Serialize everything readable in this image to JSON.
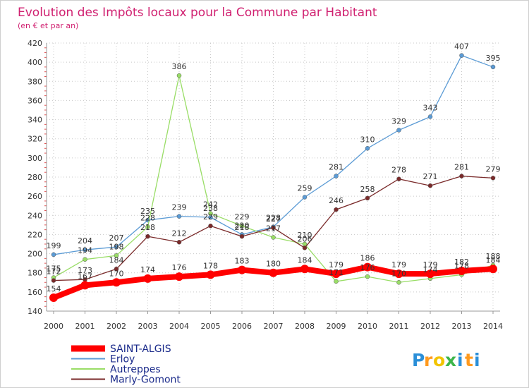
{
  "chart_data": {
    "type": "line",
    "title": "Evolution des Impôts locaux pour la Commune par Habitant",
    "subtitle": "(en € et par an)",
    "x": [
      "2000",
      "2001",
      "2002",
      "2003",
      "2004",
      "2005",
      "2006",
      "2007",
      "2008",
      "2009",
      "2010",
      "2011",
      "2012",
      "2013",
      "2014"
    ],
    "ylim": [
      140,
      420
    ],
    "yticks": [
      140,
      160,
      180,
      200,
      220,
      240,
      260,
      280,
      300,
      320,
      340,
      360,
      380,
      400,
      420
    ],
    "grid": "horizontal-dotted",
    "legend_position": "bottom-left",
    "series": [
      {
        "name": "SAINT-ALGIS",
        "color": "#ff0000",
        "values": [
          154,
          167,
          170,
          174,
          176,
          178,
          183,
          180,
          184,
          179,
          186,
          179,
          179,
          182,
          184
        ]
      },
      {
        "name": "Erloy",
        "color": "#5b9bd5",
        "values": [
          199,
          204,
          207,
          235,
          239,
          238,
          220,
          228,
          259,
          281,
          310,
          329,
          343,
          407,
          395
        ]
      },
      {
        "name": "Autreppes",
        "color": "#99dd66",
        "values": [
          175,
          194,
          198,
          228,
          386,
          242,
          229,
          217,
          210,
          171,
          176,
          170,
          174,
          178,
          188
        ]
      },
      {
        "name": "Marly-Gomont",
        "color": "#7a2a2a",
        "values": [
          172,
          173,
          184,
          218,
          212,
          229,
          218,
          227,
          206,
          246,
          258,
          278,
          271,
          281,
          279
        ]
      }
    ]
  },
  "brand": {
    "text": "Proxiti",
    "letters": [
      "P",
      "r",
      "o",
      "x",
      "i",
      "t",
      "i"
    ],
    "colors": [
      "#2b8fd8",
      "#ff9a1e",
      "#f2c400",
      "#3cb54a",
      "#2b8fd8",
      "#ff9a1e",
      "#2b8fd8"
    ]
  }
}
